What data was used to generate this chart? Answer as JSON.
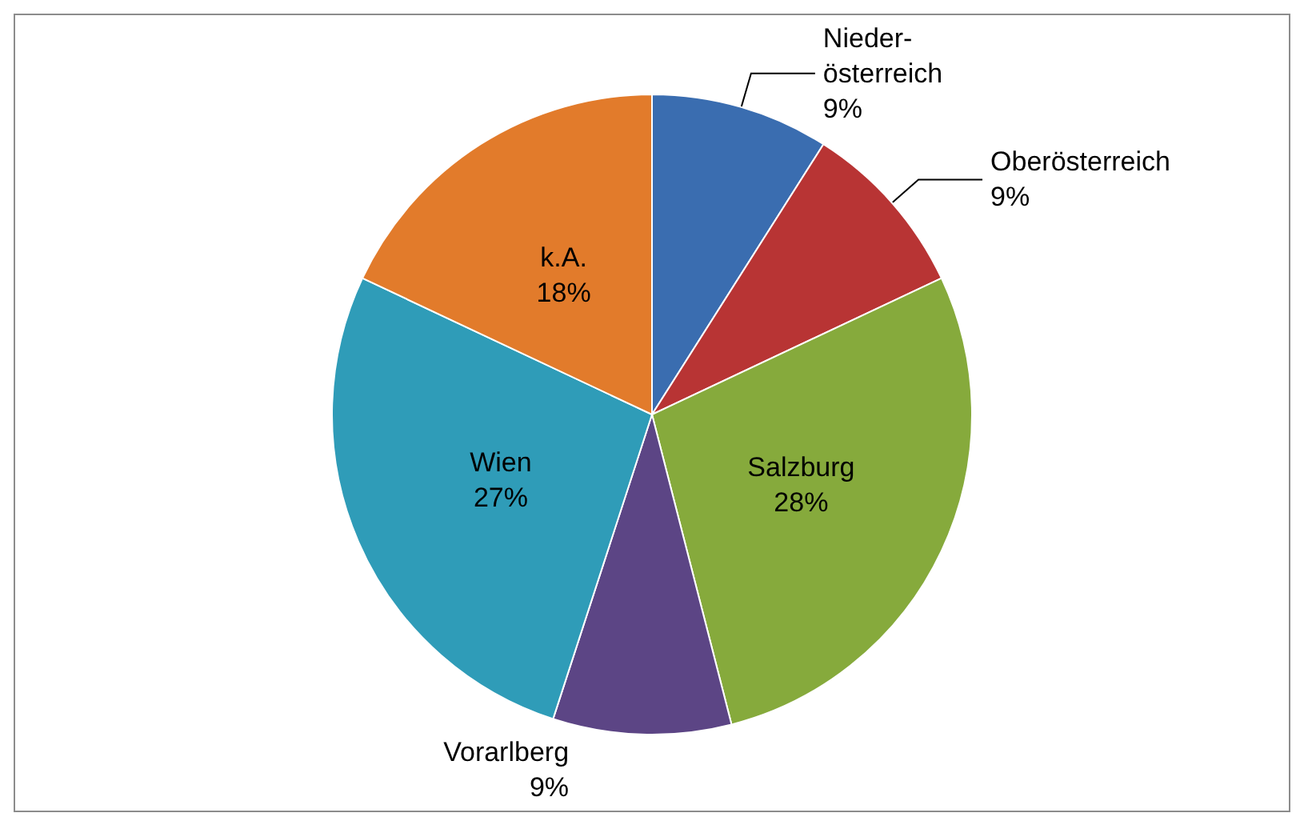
{
  "chart_data": {
    "type": "pie",
    "categories": [
      "Nieder-\nösterreich",
      "Oberösterreich",
      "Salzburg",
      "Vorarlberg",
      "Wien",
      "k.A."
    ],
    "values": [
      9,
      9,
      28,
      9,
      27,
      18
    ],
    "value_labels": [
      "9%",
      "9%",
      "28%",
      "9%",
      "27%",
      "18%"
    ],
    "colors": [
      "#3a6db0",
      "#b83434",
      "#86aa3c",
      "#5c4585",
      "#2f9cb8",
      "#e27b2b"
    ],
    "legend": false
  }
}
